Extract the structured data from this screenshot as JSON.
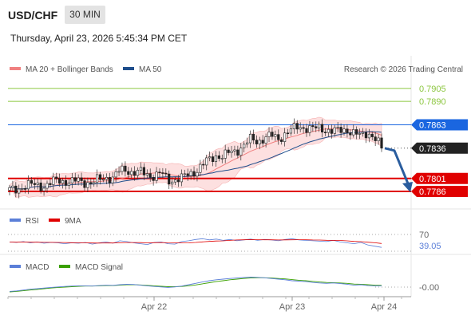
{
  "header": {
    "pair": "USD/CHF",
    "timeframe": "30 MIN",
    "datetime": "Thursday, April 23, 2026 5:45:34 PM CET"
  },
  "legend": {
    "ma20_label": "MA 20 + Bollinger Bands",
    "ma50_label": "MA 50",
    "credit": "Research © 2026 Trading Central"
  },
  "colors": {
    "ma20": "#f08080",
    "bollinger_fill": "#fde0e0",
    "ma50": "#1f4e8c",
    "level_green": "#8cc63f",
    "level_blue": "#1a66e0",
    "level_red": "#e00000",
    "current_price_bg": "#222222",
    "rsi": "#5b7fd8",
    "rsi_ma": "#e00000",
    "macd": "#5b7fd8",
    "macd_signal": "#3aa000",
    "arrow": "#2a5d9e"
  },
  "chart_data": {
    "type": "candlestick",
    "symbol": "USD/CHF",
    "ylim": [
      0.7775,
      0.7915
    ],
    "x_ticks": [
      "Apr 22",
      "Apr 23",
      "Apr 24"
    ],
    "levels": [
      {
        "value": 0.7905,
        "label": "0.7905",
        "kind": "resistance"
      },
      {
        "value": 0.789,
        "label": "0.7890",
        "kind": "resistance"
      },
      {
        "value": 0.7863,
        "label": "0.7863",
        "kind": "pivot"
      },
      {
        "value": 0.7836,
        "label": "0.7836",
        "kind": "current"
      },
      {
        "value": 0.7801,
        "label": "0.7801",
        "kind": "support"
      },
      {
        "value": 0.7786,
        "label": "0.7786",
        "kind": "support"
      }
    ],
    "close_path": [
      0.7787,
      0.7789,
      0.7792,
      0.7793,
      0.7794,
      0.7792,
      0.7795,
      0.78,
      0.7798,
      0.7796,
      0.7799,
      0.7797,
      0.7795,
      0.78,
      0.7803,
      0.7801,
      0.781,
      0.7812,
      0.7807,
      0.7808,
      0.7806,
      0.7804,
      0.7807,
      0.7799,
      0.78,
      0.7801,
      0.7806,
      0.781,
      0.7816,
      0.7823,
      0.7828,
      0.7826,
      0.7831,
      0.7834,
      0.7839,
      0.7846,
      0.7844,
      0.7848,
      0.785,
      0.7847,
      0.7853,
      0.7857,
      0.7861,
      0.786,
      0.7858,
      0.7859,
      0.7858,
      0.7855,
      0.7856,
      0.7858,
      0.7853,
      0.7849,
      0.7855,
      0.7848,
      0.7836
    ],
    "forecast": {
      "from": 0.7836,
      "to": 0.7786
    },
    "rsi": {
      "label": "RSI",
      "ma_label": "9MA",
      "value": "39.05",
      "level": "70",
      "series": [
        52,
        51,
        53,
        50,
        52,
        49,
        51,
        50,
        48,
        50,
        49,
        51,
        47,
        50,
        52,
        49,
        55,
        53,
        50,
        48,
        46,
        51,
        52,
        48,
        47,
        53,
        55,
        58,
        60,
        57,
        59,
        56,
        58,
        55,
        57,
        59,
        56,
        58,
        57,
        55,
        58,
        60,
        57,
        56,
        55,
        54,
        53,
        56,
        52,
        50,
        48,
        51,
        45,
        42,
        39.05
      ]
    },
    "macd": {
      "label": "MACD",
      "signal_label": "MACD Signal",
      "value": "-0.00",
      "series": [
        -0.3,
        -0.28,
        -0.24,
        -0.2,
        -0.18,
        -0.15,
        -0.12,
        -0.1,
        -0.08,
        -0.06,
        -0.05,
        -0.05,
        -0.06,
        -0.04,
        -0.02,
        -0.03,
        0.0,
        0.02,
        0.01,
        -0.02,
        -0.05,
        -0.08,
        -0.1,
        -0.12,
        -0.1,
        -0.06,
        0.0,
        0.06,
        0.12,
        0.18,
        0.22,
        0.25,
        0.28,
        0.3,
        0.32,
        0.34,
        0.33,
        0.31,
        0.28,
        0.25,
        0.22,
        0.18,
        0.16,
        0.14,
        0.1,
        0.08,
        0.06,
        0.08,
        0.05,
        0.02,
        -0.02,
        0.0,
        -0.04,
        -0.05,
        -0.05
      ],
      "signal": [
        -0.32,
        -0.3,
        -0.27,
        -0.24,
        -0.21,
        -0.18,
        -0.15,
        -0.13,
        -0.11,
        -0.09,
        -0.07,
        -0.06,
        -0.06,
        -0.05,
        -0.04,
        -0.04,
        -0.02,
        0.0,
        0.0,
        -0.01,
        -0.03,
        -0.05,
        -0.07,
        -0.09,
        -0.09,
        -0.08,
        -0.05,
        -0.01,
        0.04,
        0.09,
        0.14,
        0.18,
        0.22,
        0.25,
        0.28,
        0.3,
        0.31,
        0.31,
        0.3,
        0.28,
        0.26,
        0.23,
        0.2,
        0.18,
        0.15,
        0.12,
        0.1,
        0.09,
        0.08,
        0.06,
        0.03,
        0.02,
        0.0,
        -0.02,
        -0.03
      ]
    }
  }
}
